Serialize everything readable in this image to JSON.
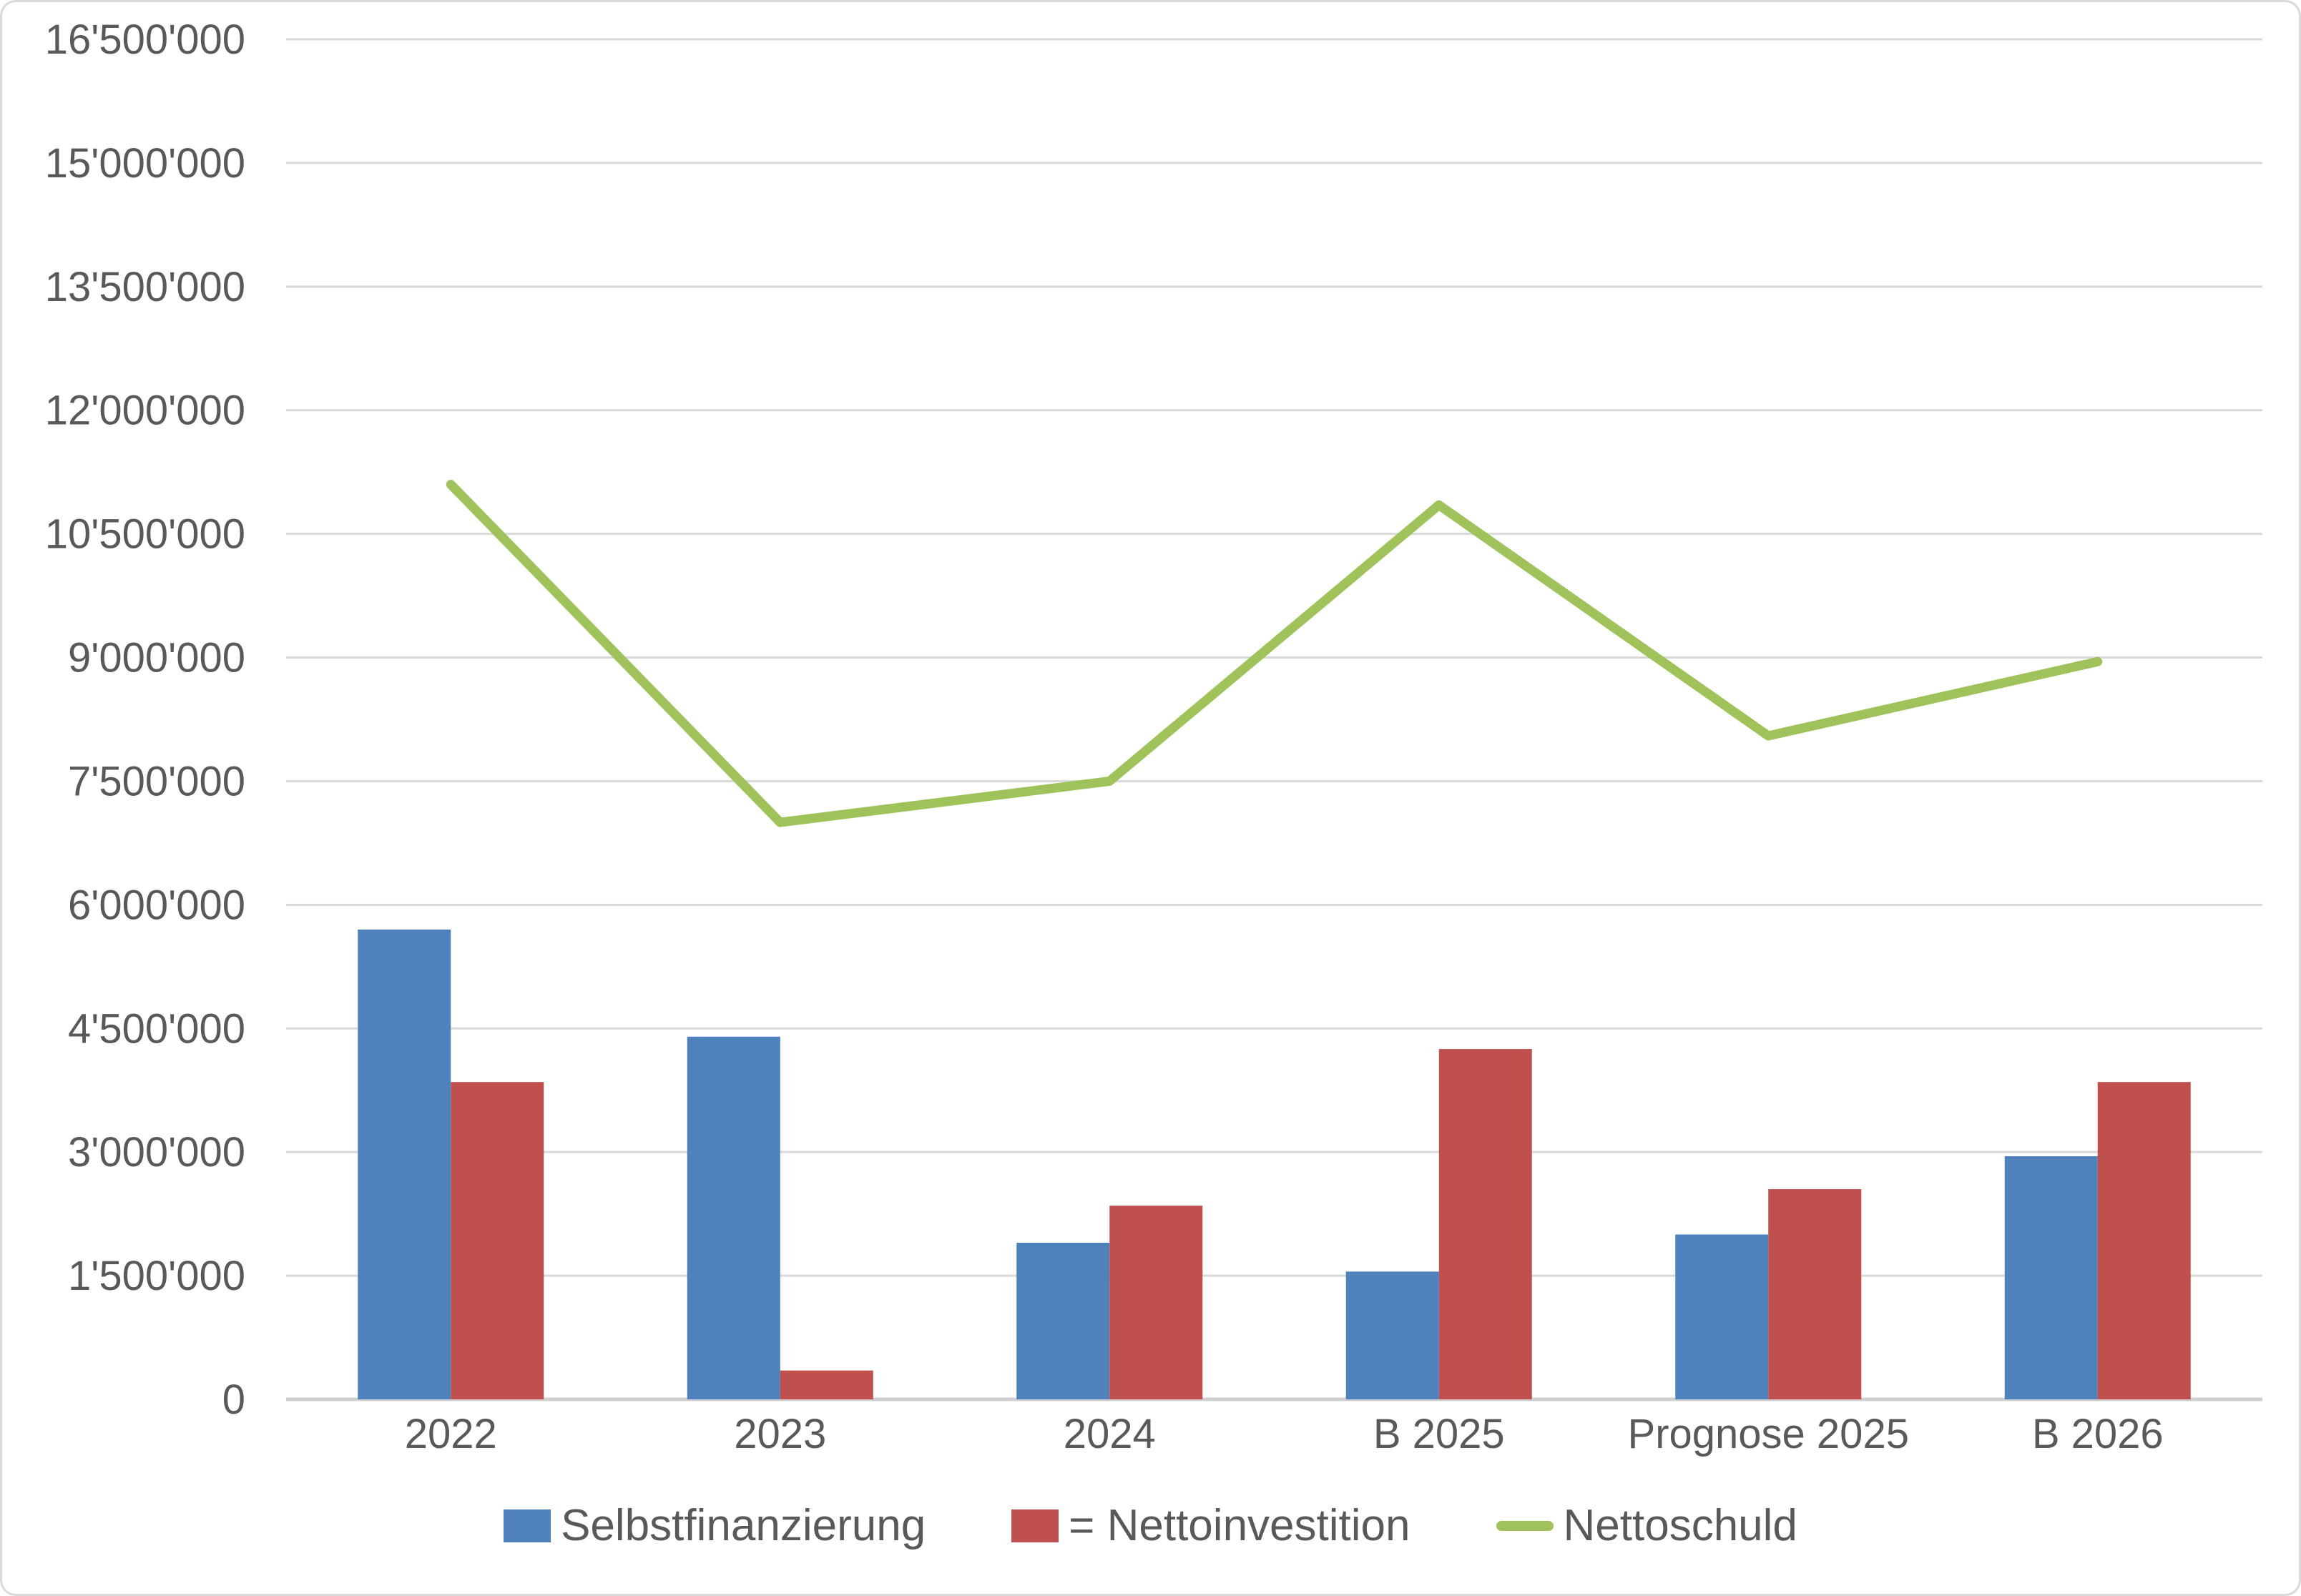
{
  "chart_data": {
    "type": "combo",
    "categories": [
      "2022",
      "2023",
      "2024",
      "B 2025",
      "Prognose 2025",
      "B 2026"
    ],
    "series": [
      {
        "name": "Selbstfinanzierung",
        "type": "bar",
        "color": "#4F81BD",
        "values": [
          5700000,
          4400000,
          1900000,
          1550000,
          2000000,
          2950000
        ]
      },
      {
        "name": "= Nettoinvestition",
        "type": "bar",
        "color": "#C0504D",
        "values": [
          3850000,
          350000,
          2350000,
          4250000,
          2550000,
          3850000
        ]
      },
      {
        "name": "Nettoschuld",
        "type": "line",
        "color": "#9FC25B",
        "values": [
          11100000,
          7000000,
          7500000,
          10850000,
          8050000,
          8950000
        ]
      }
    ],
    "y_axis": {
      "min": 0,
      "max": 16500000,
      "step": 1500000,
      "tick_labels": [
        "0",
        "1'500'000",
        "3'000'000",
        "4'500'000",
        "6'000'000",
        "7'500'000",
        "9'000'000",
        "10'500'000",
        "12'000'000",
        "13'500'000",
        "15'000'000",
        "16'500'000"
      ]
    },
    "grid": true,
    "legend_position": "bottom",
    "colors": {
      "axis_text": "#595959",
      "gridline": "#d9d9d9",
      "axis_line": "#cfcfcf",
      "background": "#ffffff",
      "border": "#d9d9d9"
    }
  }
}
